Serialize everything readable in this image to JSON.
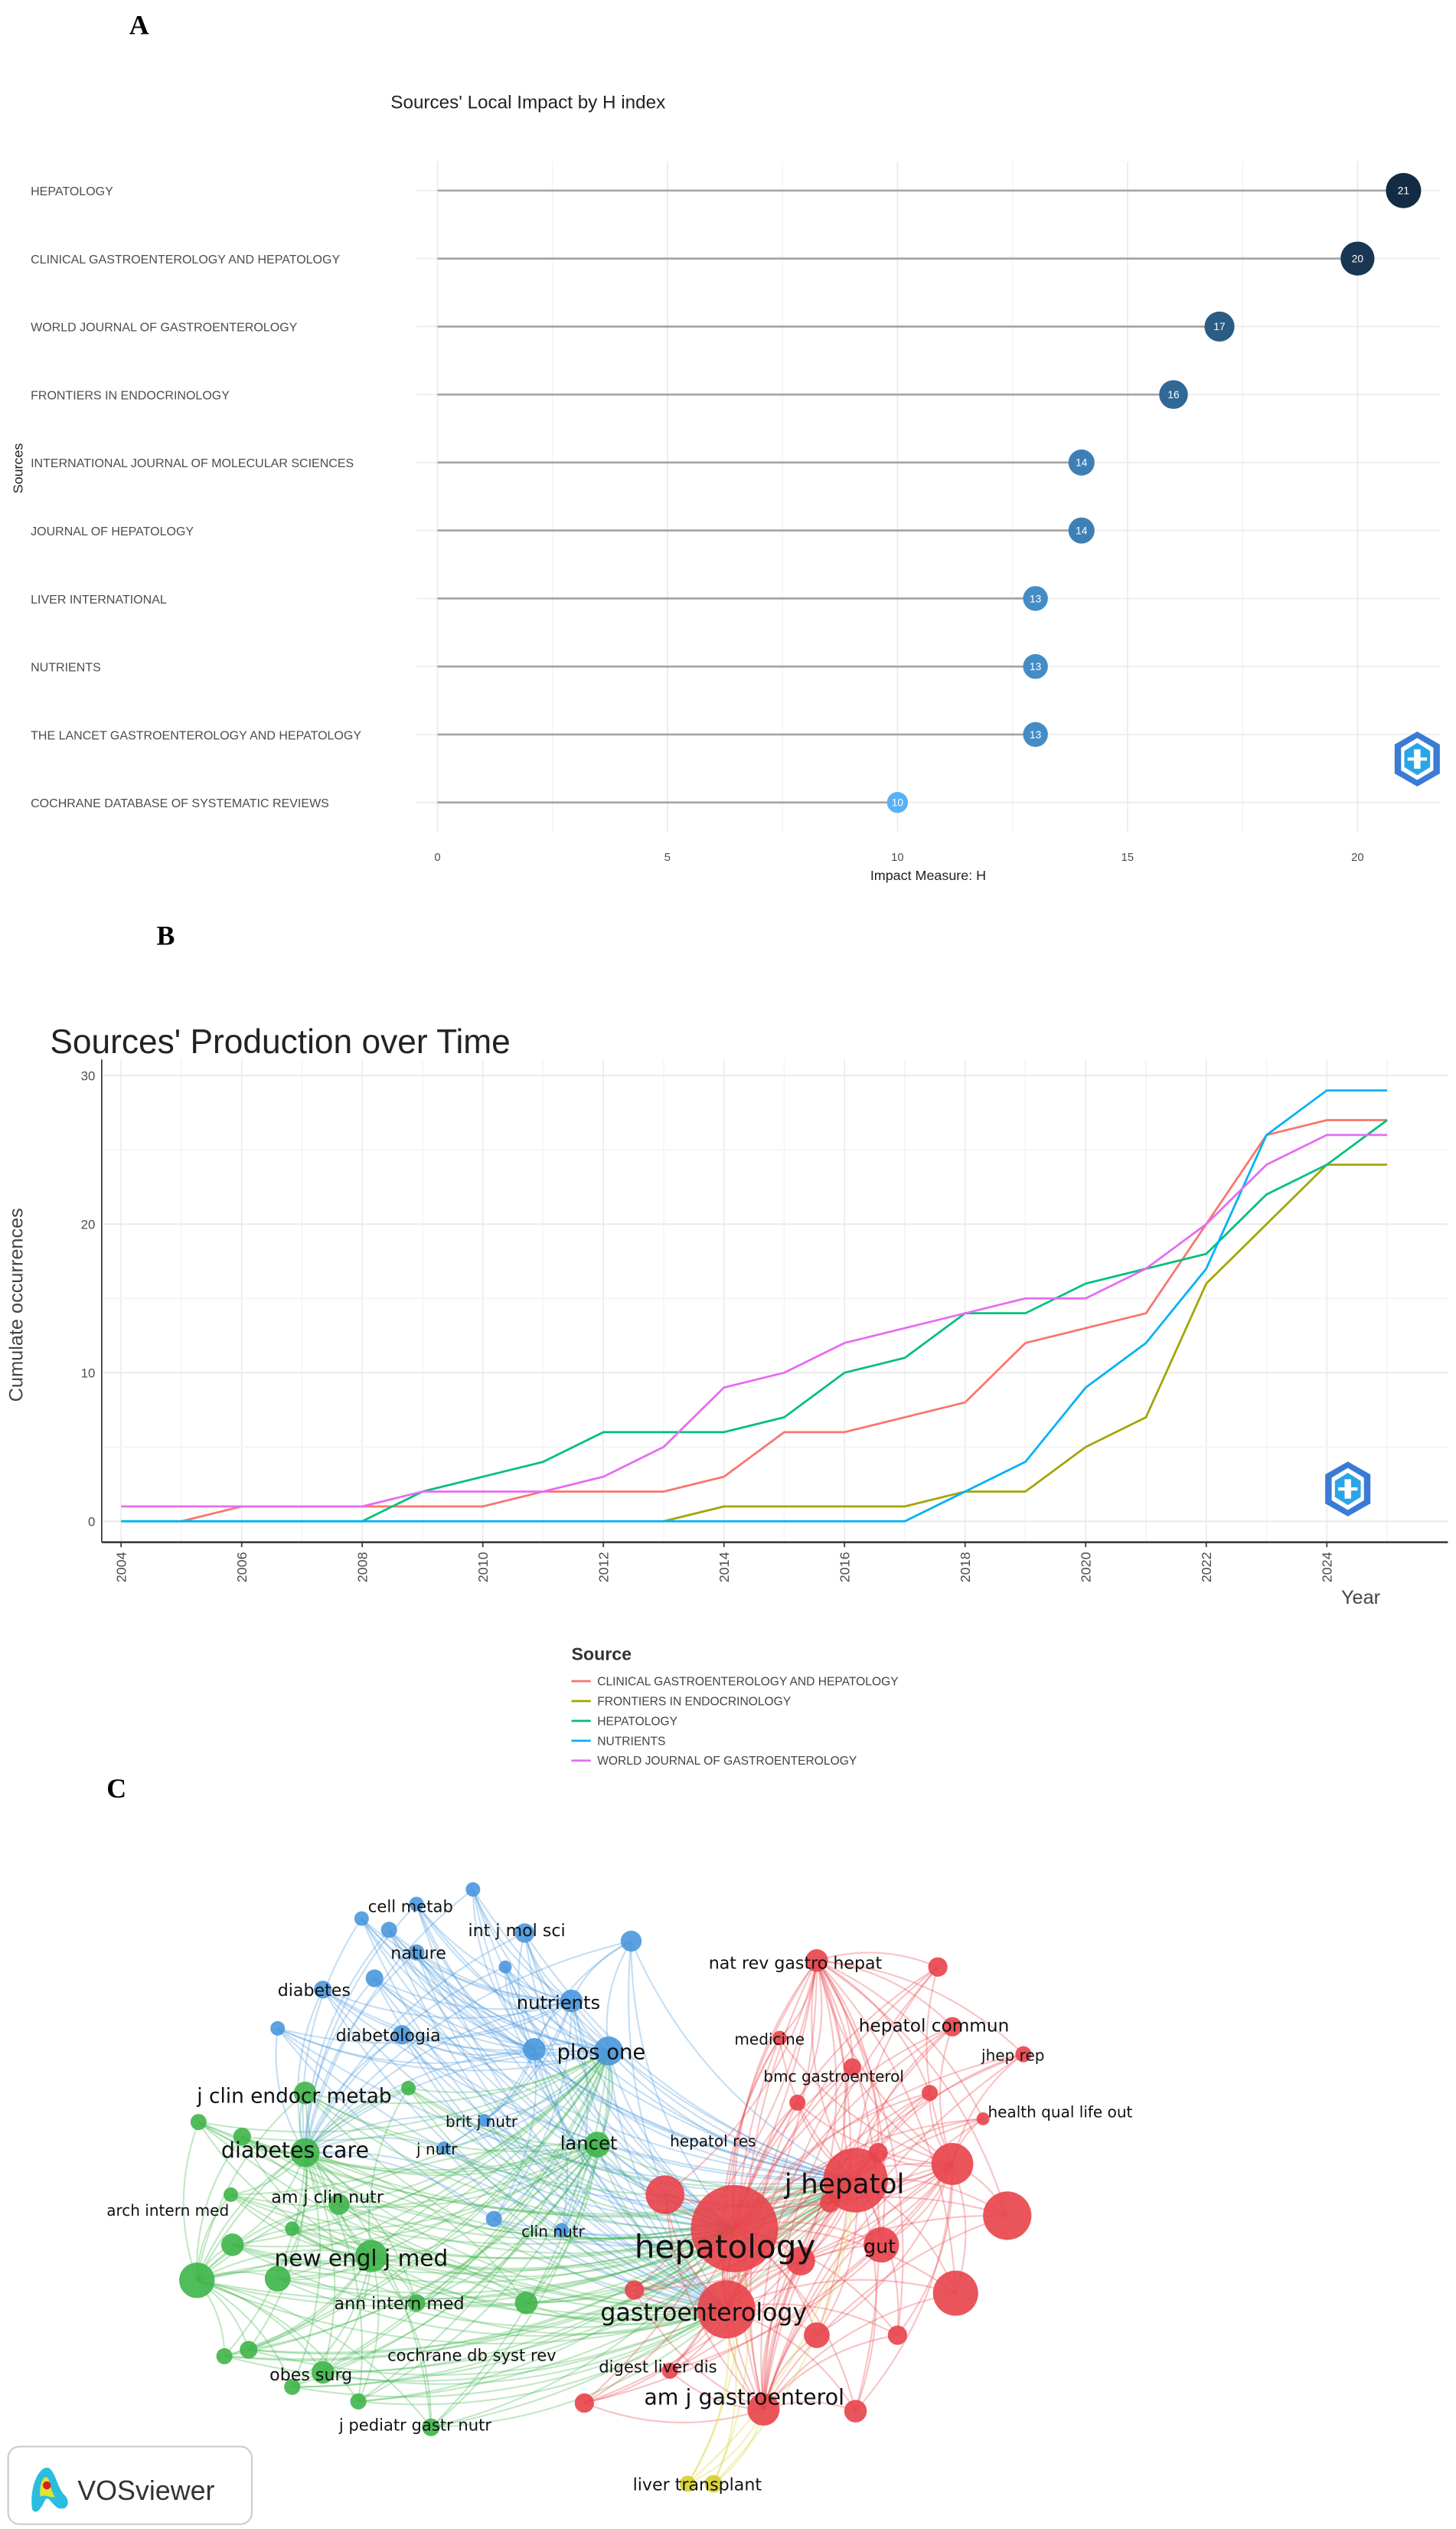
{
  "panels": {
    "a": "A",
    "b": "B",
    "c": "C"
  },
  "chart_data": [
    {
      "type": "lollipop",
      "title": "Sources' Local Impact by H index",
      "xlabel": "Impact Measure: H",
      "ylabel": "Sources",
      "categories": [
        "HEPATOLOGY",
        "CLINICAL GASTROENTEROLOGY AND HEPATOLOGY",
        "WORLD JOURNAL OF GASTROENTEROLOGY",
        "FRONTIERS IN ENDOCRINOLOGY",
        "INTERNATIONAL JOURNAL OF MOLECULAR SCIENCES",
        "JOURNAL OF HEPATOLOGY",
        "LIVER INTERNATIONAL",
        "NUTRIENTS",
        "THE LANCET GASTROENTEROLOGY AND HEPATOLOGY",
        "COCHRANE DATABASE OF SYSTEMATIC REVIEWS"
      ],
      "values": [
        21,
        20,
        17,
        16,
        14,
        14,
        13,
        13,
        13,
        10
      ],
      "value_labels": [
        "21",
        "20",
        "17",
        "16",
        "14",
        "14",
        "13",
        "13",
        "13",
        "10"
      ],
      "xticks": [
        0,
        5,
        10,
        15,
        20
      ],
      "xtick_labels": [
        "0",
        "5",
        "10",
        "15",
        "20"
      ],
      "xlim": [
        0,
        21.5
      ],
      "color_low": "#56B1F7",
      "color_high": "#132B43",
      "grid": true
    },
    {
      "type": "line",
      "title": "Sources' Production over Time",
      "xlabel": "Year",
      "ylabel": "Cumulate occurrences",
      "x": [
        2004,
        2005,
        2006,
        2007,
        2008,
        2009,
        2010,
        2011,
        2012,
        2013,
        2014,
        2015,
        2016,
        2017,
        2018,
        2019,
        2020,
        2021,
        2022,
        2023,
        2024,
        2025
      ],
      "xticks": [
        2004,
        2006,
        2008,
        2010,
        2012,
        2014,
        2016,
        2018,
        2020,
        2022,
        2024
      ],
      "xtick_labels": [
        "2004",
        "2006",
        "2008",
        "2010",
        "2012",
        "2014",
        "2016",
        "2018",
        "2020",
        "2022",
        "2024"
      ],
      "yticks": [
        0,
        10,
        20,
        30
      ],
      "ytick_labels": [
        "0",
        "10",
        "20",
        "30"
      ],
      "ylim": [
        -1,
        30.5
      ],
      "grid": true,
      "legend_title": "Source",
      "legend_position": "bottom",
      "series": [
        {
          "name": "CLINICAL GASTROENTEROLOGY AND HEPATOLOGY",
          "color": "#F8766D",
          "values": [
            null,
            0,
            1,
            1,
            1,
            1,
            1,
            2,
            2,
            2,
            3,
            6,
            6,
            7,
            8,
            12,
            13,
            14,
            20,
            26,
            27,
            27
          ]
        },
        {
          "name": "FRONTIERS IN ENDOCRINOLOGY",
          "color": "#A3A500",
          "values": [
            null,
            null,
            null,
            null,
            null,
            null,
            null,
            null,
            null,
            0,
            1,
            1,
            1,
            1,
            2,
            2,
            5,
            7,
            16,
            20,
            24,
            24
          ]
        },
        {
          "name": "HEPATOLOGY",
          "color": "#00BF7D",
          "values": [
            0,
            0,
            0,
            0,
            0,
            2,
            3,
            4,
            6,
            6,
            6,
            7,
            10,
            11,
            14,
            14,
            16,
            17,
            18,
            22,
            24,
            27
          ]
        },
        {
          "name": "NUTRIENTS",
          "color": "#00B0F6",
          "values": [
            0,
            0,
            0,
            0,
            0,
            0,
            0,
            0,
            0,
            0,
            0,
            0,
            0,
            0,
            2,
            4,
            9,
            12,
            17,
            26,
            29,
            29
          ]
        },
        {
          "name": "WORLD JOURNAL OF GASTROENTEROLOGY",
          "color": "#E76BF3",
          "values": [
            1,
            1,
            1,
            1,
            1,
            2,
            2,
            2,
            3,
            5,
            9,
            10,
            12,
            13,
            14,
            15,
            15,
            17,
            20,
            24,
            26,
            26
          ]
        }
      ]
    }
  ],
  "network": {
    "cluster_colors": [
      "#e8434a",
      "#3fb54a",
      "#4a97dd",
      "#d6cf2a"
    ],
    "labels": [
      "cell metab",
      "int j mol sci",
      "nature",
      "diabetes",
      "nutrients",
      "diabetologia",
      "plos one",
      "nat rev gastro hepat",
      "medicine",
      "hepatol commun",
      "jhep rep",
      "bmc gastroenterol",
      "health qual life out",
      "j clin endocr metab",
      "brit j nutr",
      "diabetes care",
      "j nutr",
      "lancet",
      "hepatol res",
      "am j clin nutr",
      "arch intern med",
      "j hepatol",
      "clin nutr",
      "hepatology",
      "gut",
      "new engl j med",
      "ann intern med",
      "gastroenterology",
      "cochrane db syst rev",
      "digest liver dis",
      "obes surg",
      "am j gastroenterol",
      "j pediatr gastr nutr",
      "liver transplant"
    ]
  },
  "branding": {
    "vosviewer": "VOSviewer"
  }
}
